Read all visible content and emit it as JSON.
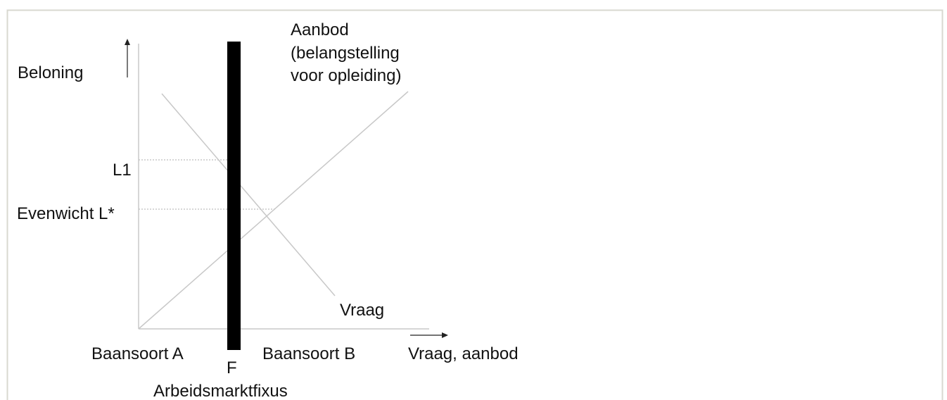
{
  "y_axis": {
    "label": "Beloning",
    "levels": [
      "L1",
      "Evenwicht L*"
    ]
  },
  "x_axis": {
    "label": "Vraag, aanbod",
    "left_region": "Baansoort A",
    "right_region": "Baansoort B"
  },
  "supply": {
    "label_lines": [
      "Aanbod",
      "(belangstelling",
      "voor opleiding)"
    ]
  },
  "demand": {
    "label": "Vraag"
  },
  "barrier": {
    "letter": "F",
    "label": "Arbeidsmarktfixus"
  }
}
